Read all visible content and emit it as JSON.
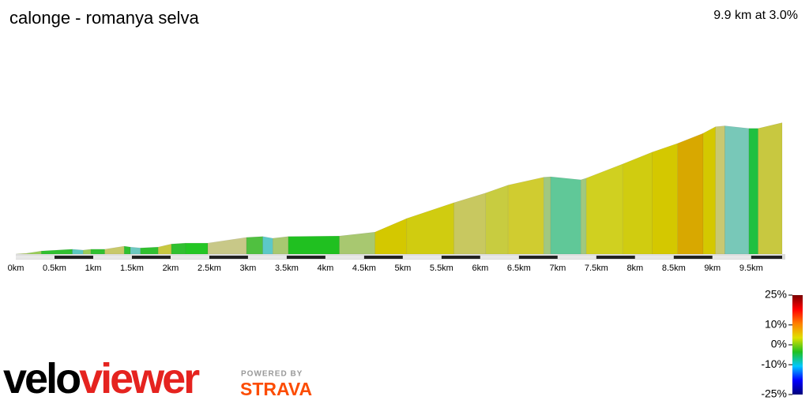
{
  "chart_data": {
    "type": "profile",
    "title": "calonge - romanya selva",
    "subtitle": "9.9 km at 3.0%",
    "x": [
      0,
      0.15,
      0.33,
      0.73,
      0.87,
      0.97,
      1.15,
      1.4,
      1.48,
      1.61,
      1.84,
      2.01,
      2.19,
      2.48,
      2.98,
      3.19,
      3.32,
      3.52,
      4.18,
      4.64,
      5.05,
      5.66,
      6.07,
      6.36,
      6.82,
      6.91,
      7.3,
      7.37,
      7.84,
      8.22,
      8.55,
      8.88,
      9.04,
      9.16,
      9.47,
      9.59,
      9.9
    ],
    "values": [
      0,
      2,
      7,
      11,
      9,
      11,
      11,
      18,
      16,
      14,
      16,
      23,
      25,
      25,
      38,
      40,
      36,
      40,
      41,
      50,
      81,
      117,
      139,
      157,
      175,
      176,
      169,
      173,
      205,
      232,
      252,
      275,
      290,
      292,
      286,
      286,
      299
    ],
    "segment_colors": [
      "#b5d06a",
      "#9acd5a",
      "#30c030",
      "#5cc8c0",
      "#9acd5a",
      "#30c030",
      "#c8c86a",
      "#30c030",
      "#6cc8c0",
      "#30c030",
      "#c8c840",
      "#30c030",
      "#24c624",
      "#c8c888",
      "#50c040",
      "#5cc8c8",
      "#a8c870",
      "#20c020",
      "#a8c870",
      "#d4c800",
      "#d0cc10",
      "#c8c860",
      "#c8cc40",
      "#d0cc30",
      "#a0c880",
      "#60c898",
      "#a0c880",
      "#d0d020",
      "#d0cc10",
      "#d4c800",
      "#d8a800",
      "#d4c800",
      "#c8c870",
      "#78c8b8",
      "#20c040",
      "#c8c840"
    ],
    "xlim": [
      0,
      9.9
    ],
    "ylim": [
      0,
      300
    ],
    "xticks": [
      {
        "value": 0,
        "label": "0km"
      },
      {
        "value": 0.5,
        "label": "0.5km"
      },
      {
        "value": 1,
        "label": "1km"
      },
      {
        "value": 1.5,
        "label": "1.5km"
      },
      {
        "value": 2,
        "label": "2km"
      },
      {
        "value": 2.5,
        "label": "2.5km"
      },
      {
        "value": 3,
        "label": "3km"
      },
      {
        "value": 3.5,
        "label": "3.5km"
      },
      {
        "value": 4,
        "label": "4km"
      },
      {
        "value": 4.5,
        "label": "4.5km"
      },
      {
        "value": 5,
        "label": "5km"
      },
      {
        "value": 5.5,
        "label": "5.5km"
      },
      {
        "value": 6,
        "label": "6km"
      },
      {
        "value": 6.5,
        "label": "6.5km"
      },
      {
        "value": 7,
        "label": "7km"
      },
      {
        "value": 7.5,
        "label": "7.5km"
      },
      {
        "value": 8,
        "label": "8km"
      },
      {
        "value": 8.5,
        "label": "8.5km"
      },
      {
        "value": 9,
        "label": "9km"
      },
      {
        "value": 9.5,
        "label": "9.5km"
      }
    ],
    "legend": {
      "lim": [
        -25,
        25
      ],
      "ticks": [
        {
          "value": 25,
          "label": "25%"
        },
        {
          "value": 10,
          "label": "10%"
        },
        {
          "value": 0,
          "label": "0%"
        },
        {
          "value": -10,
          "label": "-10%"
        },
        {
          "value": -25,
          "label": "-25%"
        }
      ],
      "gradient_colors": [
        "#00007a",
        "#0000ff",
        "#00c8ff",
        "#20c020",
        "#e0e000",
        "#ff8000",
        "#ff0000",
        "#7a0000"
      ]
    }
  },
  "branding": {
    "logo_a": "velo",
    "logo_b": "viewer",
    "powered": "POWERED BY",
    "strava": "STRAVA"
  }
}
